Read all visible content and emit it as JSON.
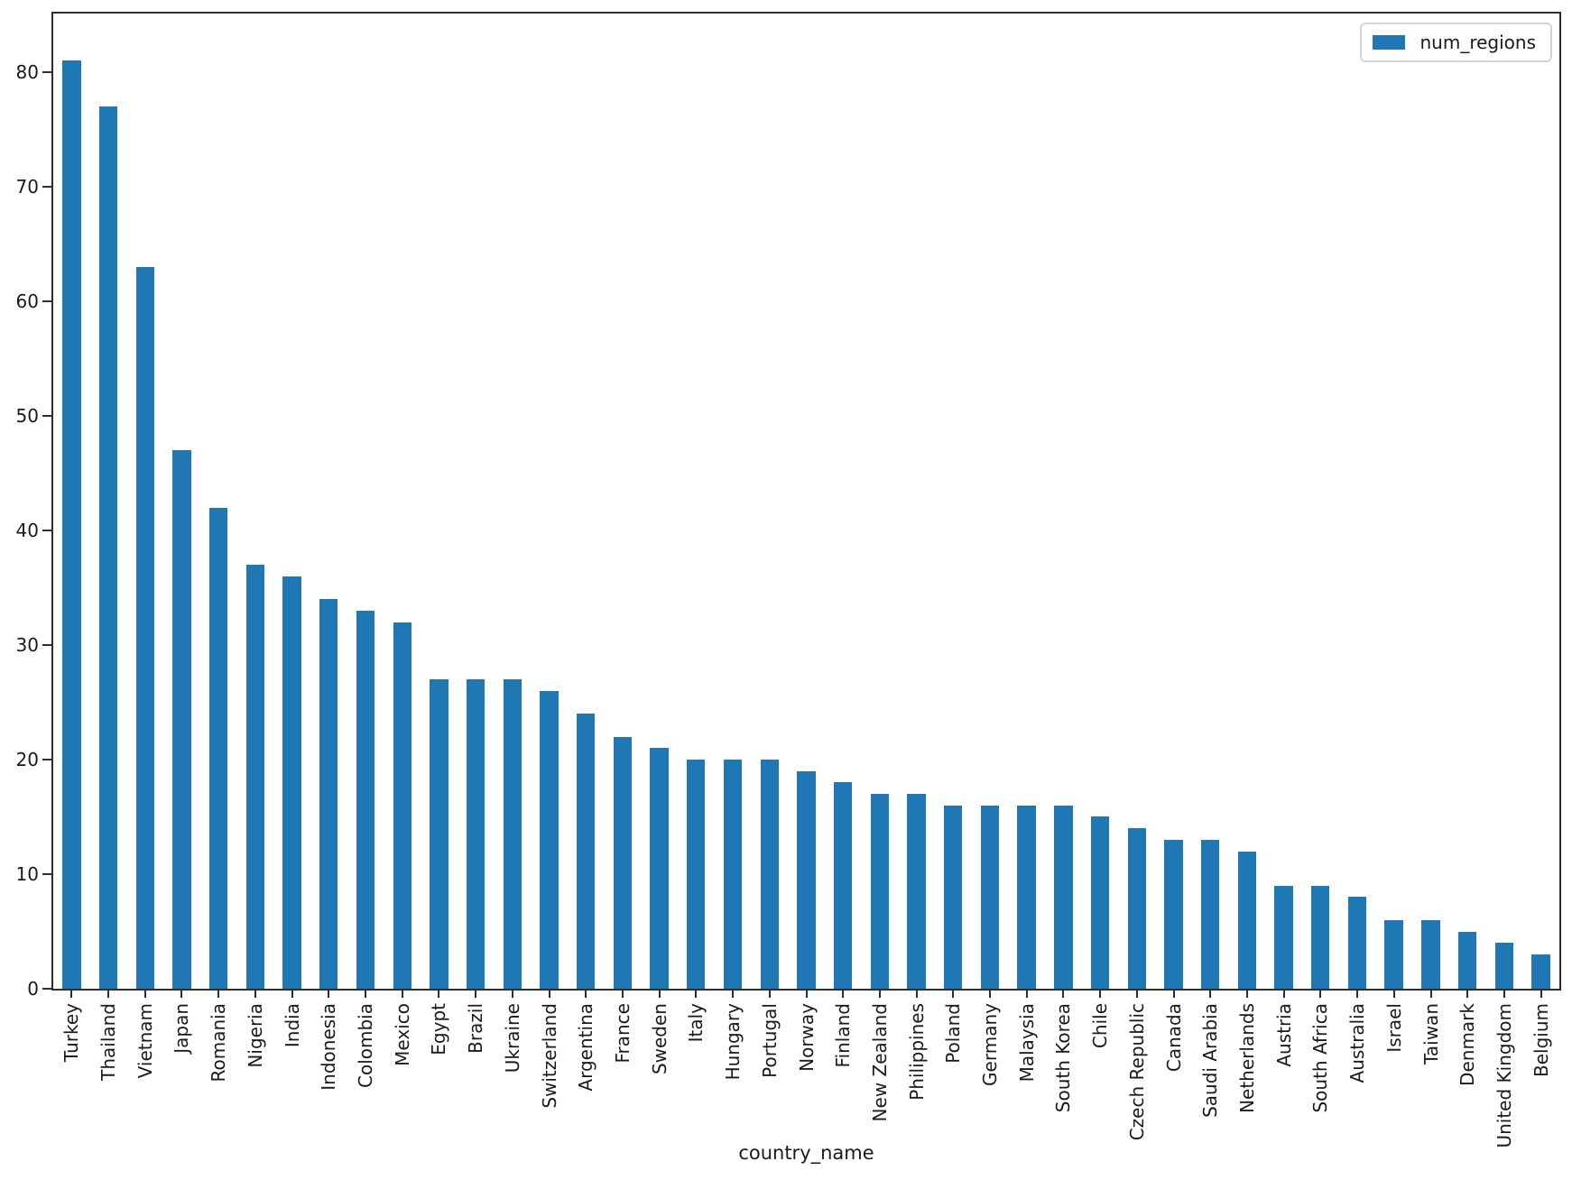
{
  "figure": {
    "background": "#ffffff",
    "bar_color": "#1f77b4",
    "axis_color": "#2e2e2e",
    "text_color": "#1a1a1a",
    "legend": {
      "label": "num_regions",
      "swatch_color": "#1f77b4",
      "position": "upper right"
    },
    "xlabel": "country_name"
  },
  "chart_data": {
    "type": "bar",
    "title": "",
    "xlabel": "country_name",
    "ylabel": "",
    "grid": false,
    "legend_entries": [
      "num_regions"
    ],
    "legend_position": "upper right",
    "ylim": [
      0,
      85.1
    ],
    "yticks": [
      0,
      10,
      20,
      30,
      40,
      50,
      60,
      70,
      80
    ],
    "x_tick_rotation": 90,
    "categories": [
      "Turkey",
      "Thailand",
      "Vietnam",
      "Japan",
      "Romania",
      "Nigeria",
      "India",
      "Indonesia",
      "Colombia",
      "Mexico",
      "Egypt",
      "Brazil",
      "Ukraine",
      "Switzerland",
      "Argentina",
      "France",
      "Sweden",
      "Italy",
      "Hungary",
      "Portugal",
      "Norway",
      "Finland",
      "New Zealand",
      "Philippines",
      "Poland",
      "Germany",
      "Malaysia",
      "South Korea",
      "Chile",
      "Czech Republic",
      "Canada",
      "Saudi Arabia",
      "Netherlands",
      "Austria",
      "South Africa",
      "Australia",
      "Israel",
      "Taiwan",
      "Denmark",
      "United Kingdom",
      "Belgium"
    ],
    "series": [
      {
        "name": "num_regions",
        "values": [
          81,
          77,
          63,
          47,
          42,
          37,
          36,
          34,
          33,
          32,
          27,
          27,
          27,
          26,
          24,
          22,
          21,
          20,
          20,
          20,
          19,
          18,
          17,
          17,
          16,
          16,
          16,
          16,
          15,
          14,
          13,
          13,
          12,
          9,
          9,
          8,
          6,
          6,
          5,
          4,
          3
        ]
      }
    ]
  }
}
